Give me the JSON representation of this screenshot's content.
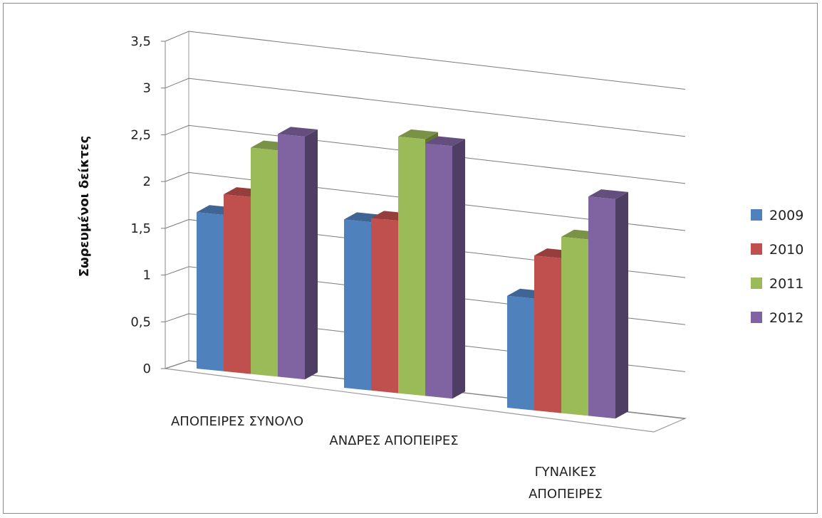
{
  "chart_data": {
    "type": "bar",
    "title": "",
    "xlabel": "",
    "ylabel": "Σωρευμένοι δείκτες",
    "ylim": [
      0,
      3.5
    ],
    "yticks": [
      "0",
      "0,5",
      "1",
      "1,5",
      "2",
      "2,5",
      "3",
      "3,5"
    ],
    "grid": true,
    "legend_position": "right",
    "style": "3d-clustered-column",
    "categories": [
      [
        "ΑΠΟΠΕΙΡΕΣ ΣΥΝΟΛΟ"
      ],
      [
        "ΑΝΔΡΕΣ ΑΠΟΠΕΙΡΕΣ"
      ],
      [
        "ΓΥΝΑΙΚΕΣ",
        "ΑΠΟΠΕΙΡΕΣ"
      ]
    ],
    "series": [
      {
        "name": "2009",
        "color": "#4f81bd",
        "values": [
          1.9,
          2.0,
          1.3
        ]
      },
      {
        "name": "2010",
        "color": "#c0504d",
        "values": [
          2.15,
          2.05,
          1.8
        ]
      },
      {
        "name": "2011",
        "color": "#9bbb59",
        "values": [
          2.75,
          3.05,
          2.05
        ]
      },
      {
        "name": "2012",
        "color": "#8064a2",
        "values": [
          2.95,
          3.0,
          2.55
        ]
      }
    ]
  }
}
